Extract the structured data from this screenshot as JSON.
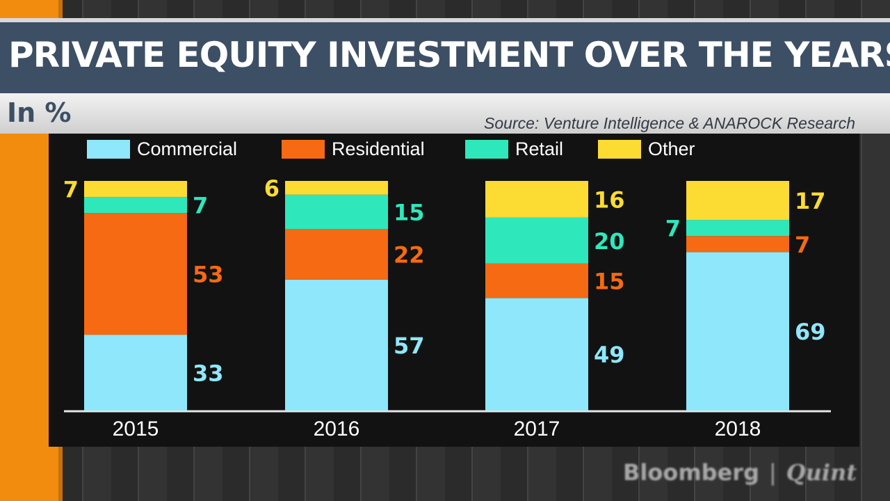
{
  "chart_data": {
    "type": "bar",
    "stacked": true,
    "title": "PRIVATE EQUITY INVESTMENT OVER THE YEARS",
    "units": "In %",
    "source": "Source: Venture Intelligence & ANAROCK Research",
    "categories": [
      "2015",
      "2016",
      "2017",
      "2018"
    ],
    "series": [
      {
        "name": "Commercial",
        "color": "#8ee7fb",
        "values": [
          33,
          57,
          49,
          69
        ]
      },
      {
        "name": "Residential",
        "color": "#f56a12",
        "values": [
          53,
          22,
          15,
          7
        ]
      },
      {
        "name": "Retail",
        "color": "#2ee8bb",
        "values": [
          7,
          15,
          20,
          7
        ]
      },
      {
        "name": "Other",
        "color": "#fcdb32",
        "values": [
          7,
          6,
          16,
          17
        ]
      }
    ],
    "ylim": [
      0,
      100
    ],
    "legend": "top",
    "grid": false
  },
  "brand": {
    "name": "Bloomberg",
    "separator": "|",
    "suffix": "Quint"
  }
}
